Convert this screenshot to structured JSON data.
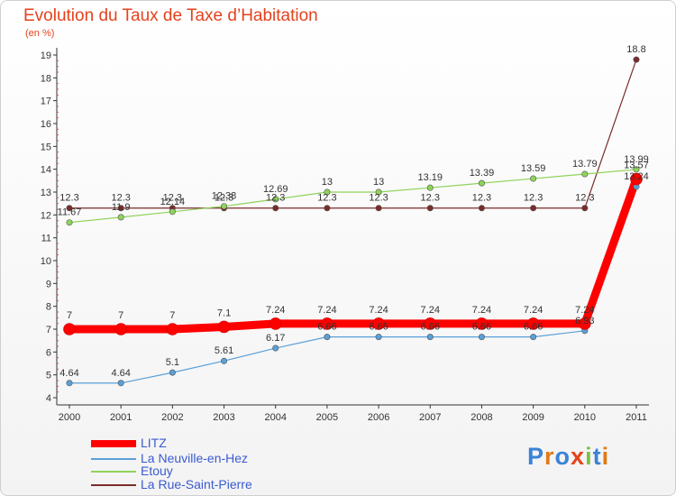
{
  "header": {
    "title": "Evolution du Taux de Taxe d’Habitation",
    "unit": "(en %)"
  },
  "logo": {
    "text": "Proxiti",
    "letters": [
      "P",
      "r",
      "o",
      "x",
      "i",
      "t",
      "i"
    ],
    "colors": [
      "#3a83d6",
      "#e07a16",
      "#3a83d6",
      "#e4421d",
      "#7cc142",
      "#3a83d6",
      "#e07a16"
    ]
  },
  "chart_data": {
    "type": "line",
    "title": "Evolution du Taux de Taxe d’Habitation",
    "ylabel": "(en %)",
    "xlabel": "",
    "x": [
      "2000",
      "2001",
      "2002",
      "2003",
      "2004",
      "2005",
      "2006",
      "2007",
      "2008",
      "2009",
      "2010",
      "2011"
    ],
    "ylim": [
      4,
      19
    ],
    "yticks": [
      4,
      5,
      6,
      7,
      8,
      9,
      10,
      11,
      12,
      13,
      14,
      15,
      16,
      17,
      18,
      19
    ],
    "grid": false,
    "legend": "bottom-left",
    "series": [
      {
        "name": "LITZ",
        "color": "#ff0000",
        "values": [
          7,
          7,
          7,
          7.1,
          7.24,
          7.24,
          7.24,
          7.24,
          7.24,
          7.24,
          7.24,
          13.57
        ],
        "labels": [
          "7",
          "7",
          "7",
          "7.1",
          "7.24",
          "7.24",
          "7.24",
          "7.24",
          "7.24",
          "7.24",
          "7.24",
          "13.57"
        ]
      },
      {
        "name": "La Neuville-en-Hez",
        "color": "#5aa0d8",
        "values": [
          4.64,
          4.64,
          5.1,
          5.61,
          6.17,
          6.66,
          6.66,
          6.66,
          6.66,
          6.66,
          6.93,
          13.24
        ],
        "labels": [
          "4.64",
          "4.64",
          "5.1",
          "5.61",
          "6.17",
          "6.66",
          "6.66",
          "6.66",
          "6.66",
          "6.66",
          "6.93",
          "13.24"
        ]
      },
      {
        "name": "Etouy",
        "color": "#8fd35a",
        "values": [
          11.67,
          11.9,
          12.14,
          12.38,
          12.69,
          13,
          13,
          13.19,
          13.39,
          13.59,
          13.79,
          13.99
        ],
        "labels": [
          "11.67",
          "11.9",
          "12.14",
          "12.38",
          "12.69",
          "13",
          "13",
          "13.19",
          "13.39",
          "13.59",
          "13.79",
          "13.99"
        ]
      },
      {
        "name": "La Rue-Saint-Pierre",
        "color": "#7a2b2b",
        "values": [
          12.3,
          12.3,
          12.3,
          12.3,
          12.3,
          12.3,
          12.3,
          12.3,
          12.3,
          12.3,
          12.3,
          18.8
        ],
        "labels": [
          "12.3",
          "12.3",
          "12.3",
          "12.3",
          "12.3",
          "12.3",
          "12.3",
          "12.3",
          "12.3",
          "12.3",
          "12.3",
          "18.8"
        ]
      }
    ]
  }
}
